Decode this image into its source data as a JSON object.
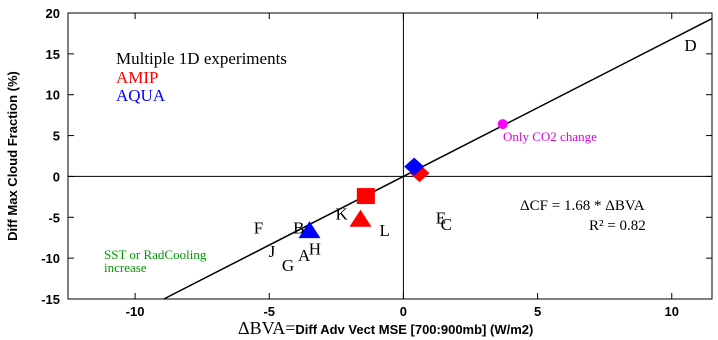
{
  "chart_data": {
    "type": "scatter",
    "xlabel_symbol": "ΔBVA",
    "xlabel_eq": "=",
    "xlabel": "Diff Adv Vect MSE [700:900mb] (W/m2)",
    "ylabel": "Diff Max Cloud Fraction (%)",
    "xlim": [
      -12.5,
      11.5
    ],
    "ylim": [
      -15,
      20
    ],
    "xticks": [
      -10,
      -5,
      0,
      5,
      10
    ],
    "yticks": [
      -15,
      -10,
      -5,
      0,
      5,
      10,
      15,
      20
    ],
    "grid": false,
    "legend": {
      "placement": "top-left",
      "entries": [
        {
          "name": "Multiple 1D experiments",
          "color": "#000000"
        },
        {
          "name": "AMIP",
          "color": "#ff0000"
        },
        {
          "name": "AQUA",
          "color": "#0000ff"
        }
      ]
    },
    "fit_line": {
      "slope": 1.68,
      "intercept": 0
    },
    "equation_text": "ΔCF = 1.68 * ΔBVA",
    "r2_text": "R² = 0.82",
    "annotations": [
      {
        "text": "Only CO2 change",
        "color": "#dd00dd",
        "x": 3.7,
        "y": 4.2
      },
      {
        "text": "SST or RadCooling increase",
        "color": "#009900",
        "x": -11,
        "y": -10
      }
    ],
    "letter_points": [
      {
        "label": "D",
        "x": 10.7,
        "y": 16
      },
      {
        "label": "F",
        "x": -5.4,
        "y": -6.3
      },
      {
        "label": "B",
        "x": -3.9,
        "y": -6.3
      },
      {
        "label": "K",
        "x": -2.3,
        "y": -4.6
      },
      {
        "label": "L",
        "x": -0.7,
        "y": -6.6
      },
      {
        "label": "E",
        "x": 1.4,
        "y": -5.1
      },
      {
        "label": "C",
        "x": 1.6,
        "y": -5.9
      },
      {
        "label": "J",
        "x": -4.9,
        "y": -9.2
      },
      {
        "label": "A",
        "x": -3.7,
        "y": -9.7
      },
      {
        "label": "H",
        "x": -3.3,
        "y": -8.9
      },
      {
        "label": "G",
        "x": -4.3,
        "y": -10.9
      }
    ],
    "series": [
      {
        "name": "AMIP",
        "color": "#ff0000",
        "points": [
          {
            "x": -1.4,
            "y": -2.4,
            "marker": "square"
          },
          {
            "x": -1.6,
            "y": -5.3,
            "marker": "triangle"
          },
          {
            "x": 0.6,
            "y": 0.4,
            "marker": "diamond"
          }
        ]
      },
      {
        "name": "AQUA",
        "color": "#0000ff",
        "points": [
          {
            "x": 0.4,
            "y": 1.2,
            "marker": "diamond"
          },
          {
            "x": -3.5,
            "y": -6.7,
            "marker": "triangle"
          }
        ]
      },
      {
        "name": "Only CO2 change",
        "color": "#ff00ff",
        "points": [
          {
            "x": 3.7,
            "y": 6.4,
            "marker": "circle"
          }
        ]
      }
    ]
  }
}
